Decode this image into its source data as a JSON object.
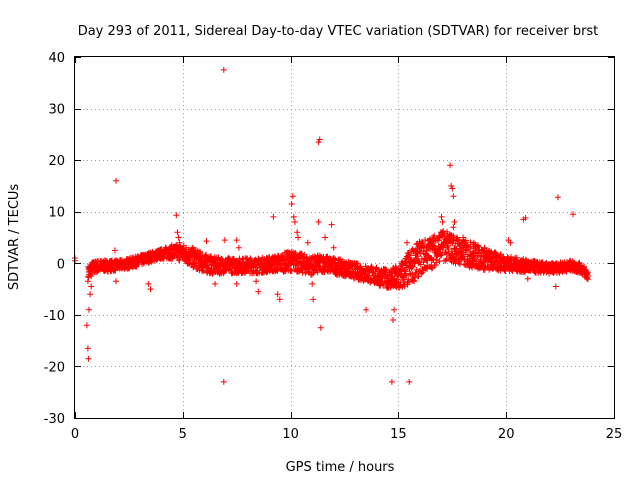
{
  "chart_data": {
    "type": "scatter",
    "title": "Day 293 of 2011, Sidereal Day-to-day VTEC variation (SDTVAR) for receiver brst",
    "xlabel": "GPS time / hours",
    "ylabel": "SDTVAR / TECUs",
    "xlim": [
      0,
      25
    ],
    "ylim": [
      -30,
      40
    ],
    "xticks": [
      "0",
      "5",
      "10",
      "15",
      "20",
      "25"
    ],
    "yticks": [
      "-30",
      "-20",
      "-10",
      "0",
      "10",
      "20",
      "30",
      "40"
    ],
    "grid": true,
    "marker": "plus",
    "colors": {
      "series": "#ff0000",
      "grid": "#a0a0a0",
      "axis": "#000000"
    },
    "series": [
      {
        "name": "SDTVAR",
        "band_center": [
          [
            0.6,
            -2.0
          ],
          [
            0.8,
            -1.0
          ],
          [
            1.0,
            -0.6
          ],
          [
            1.5,
            -0.5
          ],
          [
            2.0,
            -0.4
          ],
          [
            2.5,
            0.0
          ],
          [
            3.0,
            0.5
          ],
          [
            3.5,
            1.2
          ],
          [
            4.0,
            1.8
          ],
          [
            4.5,
            2.2
          ],
          [
            5.0,
            2.0
          ],
          [
            5.5,
            1.0
          ],
          [
            6.0,
            0.0
          ],
          [
            6.5,
            -0.5
          ],
          [
            7.0,
            -0.4
          ],
          [
            7.5,
            -0.5
          ],
          [
            8.0,
            -0.4
          ],
          [
            8.5,
            -0.5
          ],
          [
            9.0,
            -0.2
          ],
          [
            9.5,
            0.0
          ],
          [
            10.0,
            0.5
          ],
          [
            10.5,
            0.0
          ],
          [
            11.0,
            -0.5
          ],
          [
            11.5,
            0.0
          ],
          [
            12.0,
            -0.5
          ],
          [
            12.5,
            -1.0
          ],
          [
            13.0,
            -1.5
          ],
          [
            13.5,
            -2.0
          ],
          [
            14.0,
            -2.5
          ],
          [
            14.5,
            -3.0
          ],
          [
            15.0,
            -3.0
          ],
          [
            15.5,
            -1.0
          ],
          [
            16.0,
            1.0
          ],
          [
            16.5,
            2.0
          ],
          [
            17.0,
            3.5
          ],
          [
            17.5,
            3.0
          ],
          [
            18.0,
            2.0
          ],
          [
            18.5,
            1.5
          ],
          [
            19.0,
            0.8
          ],
          [
            19.5,
            0.3
          ],
          [
            20.0,
            0.0
          ],
          [
            20.5,
            -0.3
          ],
          [
            21.0,
            -0.6
          ],
          [
            21.5,
            -0.8
          ],
          [
            22.0,
            -1.0
          ],
          [
            22.5,
            -0.8
          ],
          [
            23.0,
            -0.5
          ],
          [
            23.5,
            -1.0
          ],
          [
            23.8,
            -2.5
          ]
        ],
        "band_halfwidth": [
          [
            0.6,
            1.5
          ],
          [
            1.0,
            1.2
          ],
          [
            2.0,
            1.0
          ],
          [
            4.0,
            1.0
          ],
          [
            5.5,
            2.0
          ],
          [
            7.0,
            1.5
          ],
          [
            9.0,
            1.5
          ],
          [
            10.0,
            2.0
          ],
          [
            11.0,
            1.8
          ],
          [
            12.5,
            1.5
          ],
          [
            14.5,
            1.8
          ],
          [
            15.5,
            3.5
          ],
          [
            17.0,
            3.0
          ],
          [
            18.5,
            2.5
          ],
          [
            20.0,
            1.5
          ],
          [
            22.0,
            1.0
          ],
          [
            23.8,
            1.0
          ]
        ],
        "outliers": [
          [
            0.0,
            1.0
          ],
          [
            0.0,
            0.5
          ],
          [
            0.55,
            -12.0
          ],
          [
            0.6,
            -16.5
          ],
          [
            0.62,
            -18.5
          ],
          [
            0.65,
            -9.0
          ],
          [
            0.7,
            -6.0
          ],
          [
            0.75,
            -4.5
          ],
          [
            1.9,
            16.0
          ],
          [
            1.85,
            2.5
          ],
          [
            1.9,
            -3.5
          ],
          [
            3.4,
            -4.0
          ],
          [
            3.5,
            -5.0
          ],
          [
            4.7,
            9.3
          ],
          [
            4.75,
            6.0
          ],
          [
            4.8,
            5.0
          ],
          [
            4.85,
            4.0
          ],
          [
            6.1,
            4.3
          ],
          [
            6.5,
            -4.0
          ],
          [
            6.9,
            37.5
          ],
          [
            6.9,
            -23.0
          ],
          [
            6.95,
            4.5
          ],
          [
            7.5,
            4.5
          ],
          [
            7.6,
            3.0
          ],
          [
            7.5,
            -4.0
          ],
          [
            8.4,
            -3.5
          ],
          [
            8.5,
            -5.5
          ],
          [
            9.2,
            9.0
          ],
          [
            9.4,
            -6.0
          ],
          [
            9.5,
            -7.0
          ],
          [
            10.05,
            11.5
          ],
          [
            10.1,
            13.0
          ],
          [
            10.15,
            9.0
          ],
          [
            10.2,
            8.0
          ],
          [
            10.3,
            6.0
          ],
          [
            10.35,
            5.0
          ],
          [
            10.8,
            4.0
          ],
          [
            11.0,
            -4.0
          ],
          [
            11.05,
            -7.0
          ],
          [
            11.3,
            23.5
          ],
          [
            11.35,
            24.0
          ],
          [
            11.4,
            -12.5
          ],
          [
            11.3,
            8.0
          ],
          [
            11.6,
            5.0
          ],
          [
            11.9,
            7.5
          ],
          [
            12.0,
            3.0
          ],
          [
            13.5,
            -9.0
          ],
          [
            14.7,
            -23.0
          ],
          [
            14.8,
            -9.0
          ],
          [
            14.75,
            -11.0
          ],
          [
            15.5,
            -23.0
          ],
          [
            15.4,
            4.0
          ],
          [
            17.0,
            9.0
          ],
          [
            17.05,
            8.0
          ],
          [
            17.4,
            19.0
          ],
          [
            17.45,
            15.0
          ],
          [
            17.5,
            14.5
          ],
          [
            17.55,
            13.0
          ],
          [
            17.6,
            8.0
          ],
          [
            17.55,
            7.0
          ],
          [
            18.0,
            5.0
          ],
          [
            18.5,
            4.0
          ],
          [
            19.0,
            3.0
          ],
          [
            20.1,
            4.5
          ],
          [
            20.2,
            4.0
          ],
          [
            20.8,
            8.5
          ],
          [
            20.9,
            8.8
          ],
          [
            21.0,
            -3.0
          ],
          [
            22.3,
            -4.5
          ],
          [
            22.4,
            12.8
          ],
          [
            23.1,
            9.5
          ]
        ]
      }
    ]
  }
}
